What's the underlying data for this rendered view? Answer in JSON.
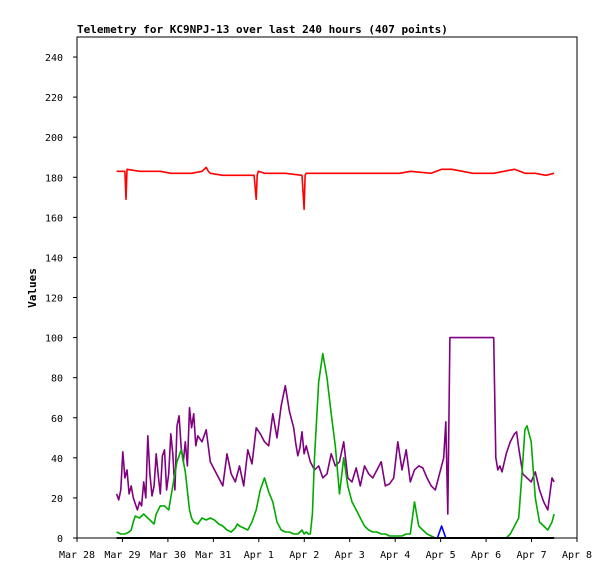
{
  "chart_data": {
    "type": "line",
    "title": "Telemetry for KC9NPJ-13 over last 240 hours (407 points)",
    "xlabel": "",
    "ylabel": "Values",
    "x_ticks": [
      "Mar 28",
      "Mar 29",
      "Mar 30",
      "Mar 31",
      "Apr 1",
      "Apr 2",
      "Apr 3",
      "Apr 4",
      "Apr 5",
      "Apr 6",
      "Apr 7",
      "Apr 8"
    ],
    "xlim": [
      0,
      240
    ],
    "ylim": [
      0,
      250
    ],
    "y_ticks": [
      0,
      20,
      40,
      60,
      80,
      100,
      120,
      140,
      160,
      180,
      200,
      220,
      240
    ],
    "grid": false,
    "legend": "none",
    "series": [
      {
        "color": "#ff0000",
        "x": [
          19,
          22,
          23,
          23.5,
          24,
          30,
          40,
          45,
          55,
          60,
          62,
          63,
          64,
          70,
          80,
          85,
          86,
          86.5,
          87,
          90,
          100,
          108,
          109,
          109.5,
          110,
          115,
          125,
          135,
          145,
          155,
          160,
          170,
          175,
          180,
          190,
          200,
          205,
          210,
          215,
          220,
          225,
          229
        ],
        "values": [
          183,
          183,
          183,
          169,
          184,
          183,
          183,
          182,
          182,
          183,
          185,
          183,
          182,
          181,
          181,
          181,
          169,
          181,
          183,
          182,
          182,
          181,
          164,
          181,
          182,
          182,
          182,
          182,
          182,
          182,
          183,
          182,
          184,
          184,
          182,
          182,
          183,
          184,
          182,
          182,
          181,
          182
        ]
      },
      {
        "color": "#800080",
        "x": [
          19,
          20,
          21,
          22,
          23,
          24,
          25,
          26,
          27,
          28,
          29,
          30,
          31,
          32,
          33,
          34,
          35,
          36,
          37,
          38,
          39,
          40,
          41,
          42,
          43,
          44,
          45,
          46,
          47,
          48,
          49,
          50,
          51,
          52,
          53,
          54,
          55,
          56,
          57,
          58,
          60,
          62,
          64,
          66,
          68,
          70,
          72,
          74,
          76,
          78,
          80,
          82,
          84,
          86,
          88,
          90,
          92,
          94,
          96,
          98,
          100,
          102,
          104,
          105,
          106,
          107,
          108,
          109,
          110,
          112,
          114,
          116,
          118,
          120,
          122,
          124,
          126,
          128,
          130,
          132,
          134,
          136,
          138,
          140,
          142,
          144,
          146,
          148,
          150,
          152,
          154,
          156,
          158,
          160,
          162,
          164,
          166,
          168,
          170,
          172,
          174,
          176,
          177,
          178,
          179,
          180,
          181,
          182,
          183,
          184,
          186,
          188,
          190,
          192,
          194,
          196,
          198,
          200,
          201,
          202,
          203,
          204,
          206,
          208,
          210,
          211,
          212,
          214,
          216,
          218,
          220,
          222,
          224,
          226,
          227,
          228,
          229
        ],
        "values": [
          22,
          19,
          24,
          43,
          30,
          34,
          22,
          26,
          20,
          17,
          14,
          18,
          16,
          28,
          20,
          51,
          32,
          21,
          26,
          42,
          31,
          22,
          41,
          44,
          24,
          32,
          52,
          42,
          24,
          56,
          61,
          45,
          38,
          48,
          36,
          65,
          55,
          62,
          46,
          51,
          48,
          54,
          38,
          34,
          30,
          26,
          42,
          32,
          28,
          36,
          26,
          44,
          37,
          55,
          52,
          48,
          46,
          62,
          50,
          66,
          76,
          63,
          55,
          47,
          41,
          45,
          53,
          42,
          46,
          38,
          34,
          36,
          30,
          32,
          42,
          36,
          38,
          48,
          30,
          28,
          35,
          26,
          36,
          32,
          30,
          34,
          38,
          26,
          27,
          30,
          48,
          34,
          44,
          28,
          34,
          36,
          35,
          30,
          26,
          24,
          32,
          40,
          58,
          12,
          100,
          100,
          100,
          100,
          100,
          100,
          100,
          100,
          100,
          100,
          100,
          100,
          100,
          100,
          40,
          34,
          36,
          33,
          42,
          48,
          52,
          53,
          45,
          32,
          30,
          28,
          33,
          24,
          18,
          14,
          22,
          30,
          28
        ]
      },
      {
        "color": "#00aa00",
        "x": [
          19,
          21,
          23,
          25,
          26,
          27,
          28,
          30,
          32,
          34,
          36,
          37,
          38,
          40,
          42,
          44,
          46,
          48,
          50,
          52,
          54,
          55,
          56,
          58,
          60,
          62,
          64,
          66,
          68,
          70,
          72,
          74,
          76,
          77,
          78,
          80,
          82,
          84,
          86,
          88,
          90,
          92,
          94,
          96,
          98,
          100,
          102,
          104,
          106,
          107,
          108,
          109,
          110,
          111,
          112,
          113,
          114,
          116,
          118,
          120,
          122,
          124,
          126,
          128,
          130,
          132,
          134,
          136,
          138,
          140,
          142,
          144,
          146,
          148,
          150,
          152,
          154,
          156,
          158,
          160,
          162,
          164,
          166,
          168,
          170,
          172,
          174,
          176,
          177,
          178,
          179,
          180,
          184,
          188,
          192,
          196,
          200,
          204,
          206,
          208,
          210,
          212,
          213,
          214,
          215,
          216,
          218,
          220,
          222,
          224,
          226,
          228,
          229
        ],
        "values": [
          3,
          2,
          2,
          3,
          4,
          8,
          11,
          10,
          12,
          10,
          8,
          7,
          12,
          16,
          16,
          14,
          26,
          38,
          44,
          33,
          14,
          10,
          8,
          7,
          10,
          9,
          10,
          9,
          7,
          6,
          4,
          3,
          5,
          7,
          6,
          5,
          4,
          8,
          14,
          24,
          30,
          23,
          18,
          8,
          4,
          3,
          3,
          2,
          2,
          3,
          4,
          2,
          3,
          2,
          2,
          12,
          40,
          78,
          92,
          80,
          62,
          46,
          22,
          40,
          26,
          18,
          14,
          10,
          6,
          4,
          3,
          3,
          2,
          2,
          1,
          1,
          1,
          1,
          2,
          2,
          18,
          6,
          4,
          2,
          1,
          0,
          0,
          0,
          0,
          0,
          0,
          0,
          0,
          0,
          0,
          0,
          0,
          0,
          0,
          2,
          6,
          10,
          24,
          38,
          54,
          56,
          48,
          20,
          8,
          6,
          4,
          8,
          12
        ]
      },
      {
        "color": "#0000ff",
        "x": [
          173,
          174,
          175,
          176,
          177
        ],
        "values": [
          0,
          3,
          6,
          3,
          0
        ]
      },
      {
        "color": "#000000",
        "x": [
          19,
          229
        ],
        "values": [
          0,
          0
        ]
      }
    ]
  }
}
